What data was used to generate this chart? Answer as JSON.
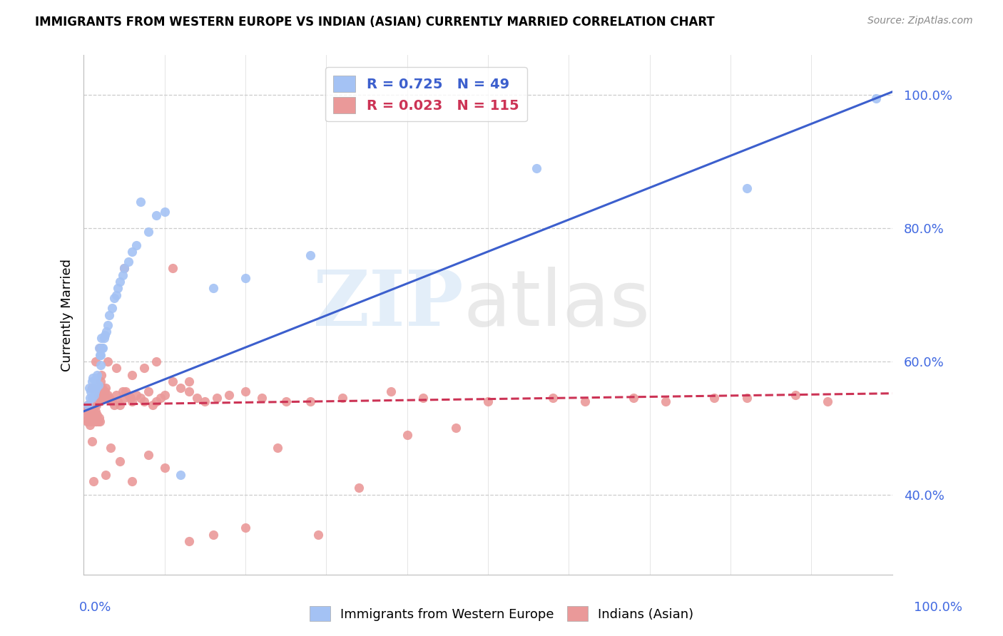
{
  "title": "IMMIGRANTS FROM WESTERN EUROPE VS INDIAN (ASIAN) CURRENTLY MARRIED CORRELATION CHART",
  "source": "Source: ZipAtlas.com",
  "ylabel": "Currently Married",
  "right_yticks": [
    "100.0%",
    "80.0%",
    "60.0%",
    "40.0%"
  ],
  "right_ytick_vals": [
    1.0,
    0.8,
    0.6,
    0.4
  ],
  "legend_blue_r": "0.725",
  "legend_blue_n": "49",
  "legend_pink_r": "0.023",
  "legend_pink_n": "115",
  "legend_blue_label": "Immigrants from Western Europe",
  "legend_pink_label": "Indians (Asian)",
  "blue_color": "#a4c2f4",
  "pink_color": "#ea9999",
  "blue_line_color": "#3c5fcd",
  "pink_line_color": "#cc3355",
  "blue_scatter_x": [
    0.005,
    0.007,
    0.008,
    0.009,
    0.01,
    0.01,
    0.011,
    0.012,
    0.013,
    0.014,
    0.015,
    0.015,
    0.016,
    0.016,
    0.017,
    0.018,
    0.019,
    0.02,
    0.021,
    0.021,
    0.022,
    0.023,
    0.024,
    0.025,
    0.026,
    0.028,
    0.03,
    0.032,
    0.035,
    0.038,
    0.04,
    0.042,
    0.045,
    0.048,
    0.05,
    0.055,
    0.06,
    0.065,
    0.07,
    0.08,
    0.09,
    0.1,
    0.12,
    0.16,
    0.2,
    0.28,
    0.56,
    0.82,
    0.98
  ],
  "blue_scatter_y": [
    0.535,
    0.56,
    0.545,
    0.555,
    0.57,
    0.545,
    0.575,
    0.56,
    0.55,
    0.555,
    0.565,
    0.57,
    0.56,
    0.575,
    0.58,
    0.565,
    0.62,
    0.61,
    0.595,
    0.61,
    0.635,
    0.62,
    0.62,
    0.635,
    0.64,
    0.645,
    0.655,
    0.67,
    0.68,
    0.695,
    0.7,
    0.71,
    0.72,
    0.73,
    0.74,
    0.75,
    0.765,
    0.775,
    0.84,
    0.795,
    0.82,
    0.825,
    0.43,
    0.71,
    0.725,
    0.76,
    0.89,
    0.86,
    0.995
  ],
  "pink_scatter_x": [
    0.002,
    0.003,
    0.004,
    0.005,
    0.005,
    0.006,
    0.006,
    0.007,
    0.007,
    0.008,
    0.008,
    0.009,
    0.009,
    0.01,
    0.01,
    0.011,
    0.011,
    0.012,
    0.012,
    0.013,
    0.013,
    0.014,
    0.014,
    0.015,
    0.015,
    0.016,
    0.016,
    0.017,
    0.018,
    0.018,
    0.019,
    0.019,
    0.02,
    0.02,
    0.021,
    0.022,
    0.023,
    0.024,
    0.025,
    0.026,
    0.027,
    0.028,
    0.03,
    0.032,
    0.035,
    0.038,
    0.04,
    0.042,
    0.045,
    0.048,
    0.05,
    0.052,
    0.055,
    0.058,
    0.06,
    0.065,
    0.07,
    0.075,
    0.08,
    0.085,
    0.09,
    0.095,
    0.1,
    0.11,
    0.12,
    0.13,
    0.14,
    0.15,
    0.165,
    0.18,
    0.2,
    0.22,
    0.25,
    0.28,
    0.32,
    0.38,
    0.42,
    0.5,
    0.58,
    0.62,
    0.68,
    0.72,
    0.78,
    0.82,
    0.88,
    0.92,
    0.01,
    0.012,
    0.015,
    0.018,
    0.022,
    0.027,
    0.033,
    0.045,
    0.06,
    0.08,
    0.1,
    0.13,
    0.16,
    0.2,
    0.24,
    0.29,
    0.34,
    0.4,
    0.46,
    0.01,
    0.02,
    0.03,
    0.04,
    0.05,
    0.06,
    0.075,
    0.09,
    0.11,
    0.13
  ],
  "pink_scatter_y": [
    0.53,
    0.52,
    0.51,
    0.525,
    0.535,
    0.51,
    0.515,
    0.52,
    0.53,
    0.505,
    0.51,
    0.52,
    0.525,
    0.515,
    0.53,
    0.51,
    0.525,
    0.515,
    0.52,
    0.51,
    0.53,
    0.515,
    0.52,
    0.51,
    0.525,
    0.535,
    0.51,
    0.52,
    0.55,
    0.51,
    0.545,
    0.515,
    0.56,
    0.51,
    0.57,
    0.555,
    0.56,
    0.545,
    0.55,
    0.555,
    0.56,
    0.545,
    0.55,
    0.545,
    0.54,
    0.535,
    0.55,
    0.54,
    0.535,
    0.555,
    0.545,
    0.555,
    0.55,
    0.545,
    0.54,
    0.55,
    0.545,
    0.54,
    0.555,
    0.535,
    0.54,
    0.545,
    0.55,
    0.57,
    0.56,
    0.555,
    0.545,
    0.54,
    0.545,
    0.55,
    0.555,
    0.545,
    0.54,
    0.54,
    0.545,
    0.555,
    0.545,
    0.54,
    0.545,
    0.54,
    0.545,
    0.54,
    0.545,
    0.545,
    0.55,
    0.54,
    0.48,
    0.42,
    0.6,
    0.54,
    0.58,
    0.43,
    0.47,
    0.45,
    0.42,
    0.46,
    0.44,
    0.33,
    0.34,
    0.35,
    0.47,
    0.34,
    0.41,
    0.49,
    0.5,
    0.56,
    0.62,
    0.6,
    0.59,
    0.74,
    0.58,
    0.59,
    0.6,
    0.74,
    0.57
  ],
  "blue_line_y_start": 0.525,
  "blue_line_y_end": 1.005,
  "pink_line_y_start": 0.535,
  "pink_line_y_end": 0.552,
  "xlim": [
    0.0,
    1.0
  ],
  "ylim": [
    0.28,
    1.06
  ]
}
